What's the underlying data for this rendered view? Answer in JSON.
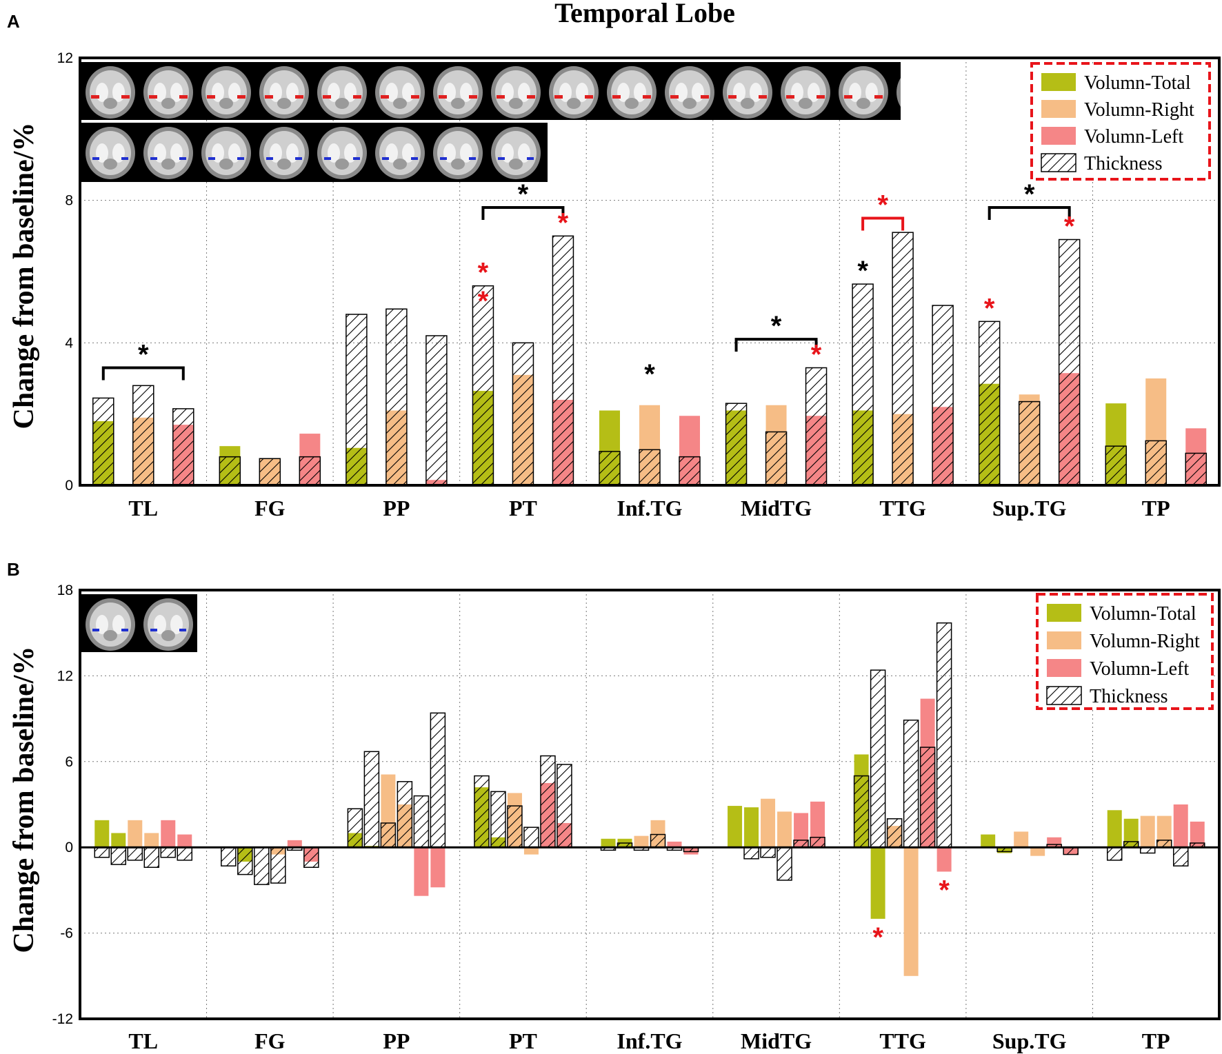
{
  "figure": {
    "title": "Temporal Lobe",
    "colors": {
      "total": "#b5be16",
      "right": "#f6bd86",
      "left": "#f58687",
      "sig_red": "#e8141a",
      "sig_black": "#000000",
      "legend_border": "#e8141a"
    },
    "icons": [
      "brain-mri-slice-icon"
    ]
  },
  "chart_data": [
    {
      "panel": "A",
      "type": "bar",
      "title": "Temporal Lobe",
      "ylabel": "Change from baseline/%",
      "xlabel": "",
      "ylim": [
        0,
        12
      ],
      "yticks": [
        "0",
        "4",
        "8",
        "12"
      ],
      "grid": true,
      "legend_position": "top-right",
      "legend": [
        "Volumn-Total",
        "Volumn-Right",
        "Volumn-Left",
        "Thickness"
      ],
      "categories": [
        "TL",
        "FG",
        "PP",
        "PT",
        "Inf.TG",
        "MidTG",
        "TTG",
        "Sup.TG",
        "TP"
      ],
      "bars": [
        [
          {
            "type": "total",
            "vol": 1.8,
            "thick": 2.45
          },
          {
            "type": "right",
            "vol": 1.9,
            "thick": 2.8
          },
          {
            "type": "left",
            "vol": 1.7,
            "thick": 2.15
          }
        ],
        [
          {
            "type": "total",
            "vol": 1.1,
            "thick": 0.8
          },
          {
            "type": "right",
            "vol": 0.75,
            "thick": 0.75
          },
          {
            "type": "left",
            "vol": 1.45,
            "thick": 0.8
          }
        ],
        [
          {
            "type": "total",
            "vol": 1.05,
            "thick": 4.8
          },
          {
            "type": "right",
            "vol": 2.1,
            "thick": 4.95
          },
          {
            "type": "left",
            "vol": 0.15,
            "thick": 4.2
          }
        ],
        [
          {
            "type": "total",
            "vol": 2.65,
            "thick": 5.6
          },
          {
            "type": "right",
            "vol": 3.1,
            "thick": 4.0
          },
          {
            "type": "left",
            "vol": 2.4,
            "thick": 7.0
          }
        ],
        [
          {
            "type": "total",
            "vol": 2.1,
            "thick": 0.95
          },
          {
            "type": "right",
            "vol": 2.25,
            "thick": 1.0
          },
          {
            "type": "left",
            "vol": 1.95,
            "thick": 0.8
          }
        ],
        [
          {
            "type": "total",
            "vol": 2.1,
            "thick": 2.3
          },
          {
            "type": "right",
            "vol": 2.25,
            "thick": 1.5
          },
          {
            "type": "left",
            "vol": 1.95,
            "thick": 3.3
          }
        ],
        [
          {
            "type": "total",
            "vol": 2.1,
            "thick": 5.65
          },
          {
            "type": "right",
            "vol": 2.0,
            "thick": 7.1
          },
          {
            "type": "left",
            "vol": 2.2,
            "thick": 5.05
          }
        ],
        [
          {
            "type": "total",
            "vol": 2.85,
            "thick": 4.6
          },
          {
            "type": "right",
            "vol": 2.55,
            "thick": 2.35
          },
          {
            "type": "left",
            "vol": 3.15,
            "thick": 6.9
          }
        ],
        [
          {
            "type": "total",
            "vol": 2.3,
            "thick": 1.1
          },
          {
            "type": "right",
            "vol": 3.0,
            "thick": 1.25
          },
          {
            "type": "left",
            "vol": 1.6,
            "thick": 0.9
          }
        ]
      ],
      "stars": [
        {
          "group": 3,
          "bar": 0,
          "color": "red",
          "y": 4.8
        },
        {
          "group": 3,
          "bar": 0,
          "color": "red",
          "y": 5.6
        },
        {
          "group": 3,
          "bar": 2,
          "color": "red",
          "y": 7.0
        },
        {
          "group": 5,
          "bar": 2,
          "color": "red",
          "y": 3.3
        },
        {
          "group": 6,
          "bar": 0,
          "color": "black",
          "y": 5.65
        },
        {
          "group": 7,
          "bar": 0,
          "color": "red",
          "y": 4.6
        },
        {
          "group": 7,
          "bar": 2,
          "color": "red",
          "y": 6.9
        },
        {
          "group": 4,
          "bar": 1,
          "color": "black",
          "y": 2.75
        }
      ],
      "brackets": [
        {
          "group": 0,
          "from": 0,
          "to": 2,
          "y": 3.3,
          "color": "black"
        },
        {
          "group": 3,
          "from": 0,
          "to": 2,
          "y": 7.8,
          "color": "black"
        },
        {
          "group": 5,
          "from": 0,
          "to": 2,
          "y": 4.1,
          "color": "black"
        },
        {
          "group": 6,
          "from": 0,
          "to": 1,
          "y": 7.5,
          "color": "red"
        },
        {
          "group": 7,
          "from": 0,
          "to": 2,
          "y": 7.8,
          "color": "black"
        }
      ]
    },
    {
      "panel": "B",
      "type": "bar",
      "ylabel": "Change from baseline/%",
      "xlabel": "",
      "ylim": [
        -12,
        18
      ],
      "yticks": [
        "-12",
        "-6",
        "0",
        "6",
        "12",
        "18"
      ],
      "grid": true,
      "legend_position": "top-right",
      "legend": [
        "Volumn-Total",
        "Volumn-Right",
        "Volumn-Left",
        "Thickness"
      ],
      "categories": [
        "TL",
        "FG",
        "PP",
        "PT",
        "Inf.TG",
        "MidTG",
        "TTG",
        "Sup.TG",
        "TP"
      ],
      "bars": [
        [
          {
            "type": "total",
            "vol": 1.9,
            "thick": -0.7
          },
          {
            "type": "total",
            "vol": 1.0,
            "thick": -1.2
          },
          {
            "type": "right",
            "vol": 1.9,
            "thick": -0.9
          },
          {
            "type": "right",
            "vol": 1.0,
            "thick": -1.4
          },
          {
            "type": "left",
            "vol": 1.9,
            "thick": -0.7
          },
          {
            "type": "left",
            "vol": 0.9,
            "thick": -0.9
          }
        ],
        [
          {
            "type": "total",
            "vol": 0,
            "thick": -1.3
          },
          {
            "type": "total",
            "vol": -1.0,
            "thick": -1.9
          },
          {
            "type": "right",
            "vol": 0,
            "thick": -2.6
          },
          {
            "type": "right",
            "vol": -0.5,
            "thick": -2.5
          },
          {
            "type": "left",
            "vol": 0.5,
            "thick": -0.2
          },
          {
            "type": "left",
            "vol": -1.0,
            "thick": -1.4
          }
        ],
        [
          {
            "type": "total",
            "vol": 1.0,
            "thick": 2.7
          },
          {
            "type": "total",
            "vol": 0.1,
            "thick": 6.7
          },
          {
            "type": "right",
            "vol": 5.1,
            "thick": 1.7
          },
          {
            "type": "right",
            "vol": 3.0,
            "thick": 4.6
          },
          {
            "type": "left",
            "vol": -3.4,
            "thick": 3.6
          },
          {
            "type": "left",
            "vol": -2.8,
            "thick": 9.4
          }
        ],
        [
          {
            "type": "total",
            "vol": 4.2,
            "thick": 5.0
          },
          {
            "type": "total",
            "vol": 0.7,
            "thick": 3.9
          },
          {
            "type": "right",
            "vol": 3.8,
            "thick": 2.9
          },
          {
            "type": "right",
            "vol": -0.5,
            "thick": 1.4
          },
          {
            "type": "left",
            "vol": 4.5,
            "thick": 6.4
          },
          {
            "type": "left",
            "vol": 1.7,
            "thick": 5.8
          }
        ],
        [
          {
            "type": "total",
            "vol": 0.6,
            "thick": -0.2
          },
          {
            "type": "total",
            "vol": 0.6,
            "thick": 0.3
          },
          {
            "type": "right",
            "vol": 0.8,
            "thick": -0.2
          },
          {
            "type": "right",
            "vol": 1.9,
            "thick": 0.9
          },
          {
            "type": "left",
            "vol": 0.4,
            "thick": -0.2
          },
          {
            "type": "left",
            "vol": -0.5,
            "thick": -0.3
          }
        ],
        [
          {
            "type": "total",
            "vol": 2.9,
            "thick": 0
          },
          {
            "type": "total",
            "vol": 2.8,
            "thick": -0.8
          },
          {
            "type": "right",
            "vol": 3.4,
            "thick": -0.7
          },
          {
            "type": "right",
            "vol": 2.5,
            "thick": -2.3
          },
          {
            "type": "left",
            "vol": 2.4,
            "thick": 0.5
          },
          {
            "type": "left",
            "vol": 3.2,
            "thick": 0.7
          }
        ],
        [
          {
            "type": "total",
            "vol": 6.5,
            "thick": 5.0
          },
          {
            "type": "total",
            "vol": -5.0,
            "thick": 12.4
          },
          {
            "type": "right",
            "vol": 1.5,
            "thick": 2.0
          },
          {
            "type": "right",
            "vol": -9.0,
            "thick": 8.9
          },
          {
            "type": "left",
            "vol": 10.4,
            "thick": 7.0
          },
          {
            "type": "left",
            "vol": -1.7,
            "thick": 15.7
          }
        ],
        [
          {
            "type": "total",
            "vol": 0.9,
            "thick": 0
          },
          {
            "type": "total",
            "vol": -0.4,
            "thick": -0.3
          },
          {
            "type": "right",
            "vol": 1.1,
            "thick": 0
          },
          {
            "type": "right",
            "vol": -0.6,
            "thick": 0
          },
          {
            "type": "left",
            "vol": 0.7,
            "thick": 0.2
          },
          {
            "type": "left",
            "vol": -0.5,
            "thick": -0.5
          }
        ],
        [
          {
            "type": "total",
            "vol": 2.6,
            "thick": -0.9
          },
          {
            "type": "total",
            "vol": 2.0,
            "thick": 0.4
          },
          {
            "type": "right",
            "vol": 2.2,
            "thick": -0.4
          },
          {
            "type": "right",
            "vol": 2.2,
            "thick": 0.5
          },
          {
            "type": "left",
            "vol": 3.0,
            "thick": -1.3
          },
          {
            "type": "left",
            "vol": 1.8,
            "thick": 0.3
          }
        ]
      ],
      "stars": [
        {
          "group": 6,
          "bar": 1,
          "color": "red",
          "y": -5.0
        },
        {
          "group": 6,
          "bar": 5,
          "color": "red",
          "y": -1.7
        }
      ]
    }
  ]
}
